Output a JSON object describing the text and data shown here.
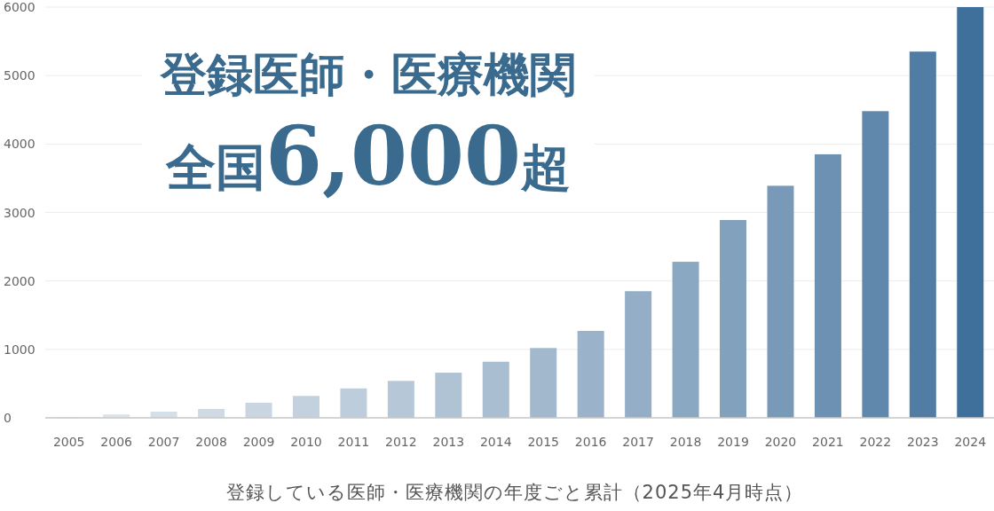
{
  "chart_data": {
    "type": "bar",
    "title": "登録医師・医療機関",
    "subtitle": "全国6,000超",
    "xlabel": "登録している医師・医療機関の年度ごと累計（2025年4月時点）",
    "categories": [
      "2005",
      "2006",
      "2007",
      "2008",
      "2009",
      "2010",
      "2011",
      "2012",
      "2013",
      "2014",
      "2015",
      "2016",
      "2017",
      "2018",
      "2019",
      "2020",
      "2021",
      "2022",
      "2023",
      "2024"
    ],
    "values": [
      10,
      50,
      90,
      130,
      220,
      320,
      430,
      540,
      660,
      820,
      1020,
      1270,
      1850,
      2280,
      2890,
      3390,
      3850,
      4480,
      5350,
      6000
    ],
    "colors": [
      "#dfe7ee",
      "#dae3eb",
      "#d4dfe8",
      "#cfdae5",
      "#c9d6e2",
      "#c3d1de",
      "#bdcddb",
      "#b6c8d8",
      "#b0c3d4",
      "#a9bed1",
      "#a2b9cd",
      "#9bb3ca",
      "#93aec6",
      "#8ba8c2",
      "#82a1bd",
      "#7899b8",
      "#6d91b2",
      "#6088ac",
      "#517da5",
      "#3f709b"
    ],
    "ylim": [
      0,
      6000
    ],
    "yticks": [
      0,
      1000,
      2000,
      3000,
      4000,
      5000,
      6000
    ],
    "grid": "y"
  }
}
